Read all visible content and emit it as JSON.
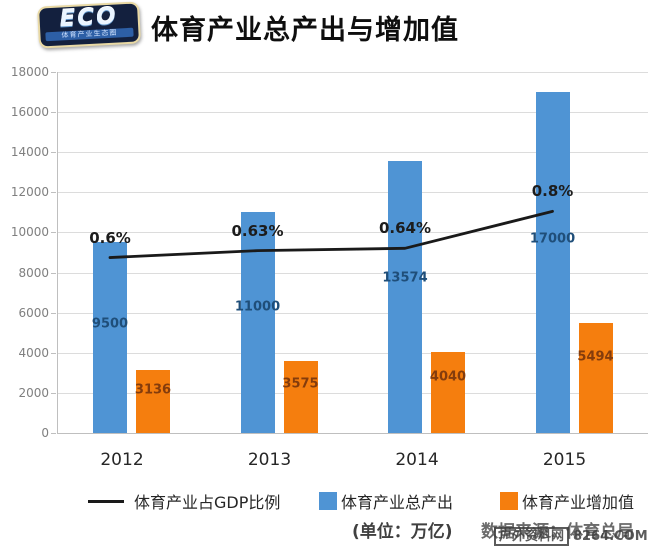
{
  "header": {
    "logo_text": "ECO",
    "logo_subtitle": "体育产业生态圈",
    "title": "体育产业总产出与增加值"
  },
  "chart_data": {
    "type": "combo-bar-line",
    "categories": [
      "2012",
      "2013",
      "2014",
      "2015"
    ],
    "series": [
      {
        "name": "体育产业总产出",
        "type": "bar",
        "color": "#4f94d4",
        "label_color": "#1f4e79",
        "values": [
          9500,
          11000,
          13574,
          17000
        ]
      },
      {
        "name": "体育产业增加值",
        "type": "bar",
        "color": "#f57e0e",
        "label_color": "#843c0c",
        "values": [
          3136,
          3575,
          4040,
          5494
        ]
      },
      {
        "name": "体育产业占GDP比例",
        "type": "line",
        "color": "#1a1a1a",
        "values_percent": [
          0.6,
          0.63,
          0.64,
          0.8
        ],
        "point_labels": [
          "0.6%",
          "0.63%",
          "0.64%",
          "0.8%"
        ]
      }
    ],
    "ylim": [
      0,
      18000
    ],
    "ytick_step": 2000,
    "grid": true,
    "legend_position": "bottom"
  },
  "footer": {
    "unit_note": "(单位：万亿)",
    "source_note": "数据来源：体育总局"
  },
  "watermark": {
    "boxed_text": "户外资料网",
    "suffix": "8264.COM"
  }
}
